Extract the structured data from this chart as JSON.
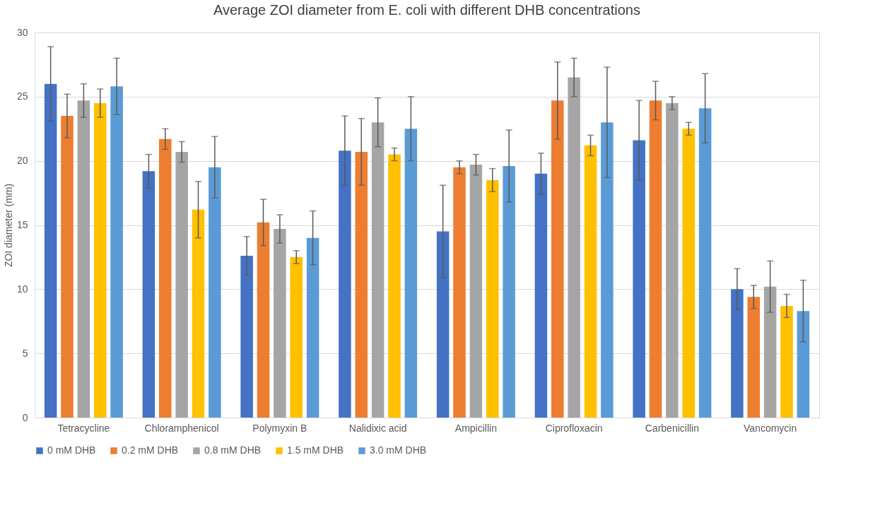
{
  "chart_data": {
    "type": "bar",
    "title": "Average ZOI diameter from E. coli with different DHB concentrations",
    "ylabel": "ZOI diameter (mm)",
    "categories": [
      "Tetracycline",
      "Chloramphenicol",
      "Polymyxin B",
      "Nalidixic acid",
      "Ampicillin",
      "Ciprofloxacin",
      "Carbenicillin",
      "Vancomycin"
    ],
    "series": [
      {
        "name": "0 mM DHB",
        "color": "#4472c4",
        "values": [
          26.0,
          19.2,
          12.6,
          20.8,
          14.5,
          19.0,
          21.6,
          10.0
        ],
        "errors": [
          2.9,
          1.3,
          1.5,
          2.7,
          3.6,
          1.6,
          3.1,
          1.6
        ]
      },
      {
        "name": "0.2 mM DHB",
        "color": "#ed7d31",
        "values": [
          23.5,
          21.7,
          15.2,
          20.7,
          19.5,
          24.7,
          24.7,
          9.4
        ],
        "errors": [
          1.7,
          0.8,
          1.8,
          2.6,
          0.5,
          3.0,
          1.5,
          0.9
        ]
      },
      {
        "name": "0.8 mM DHB",
        "color": "#a5a5a5",
        "values": [
          24.7,
          20.7,
          14.7,
          23.0,
          19.7,
          26.5,
          24.5,
          10.2
        ],
        "errors": [
          1.3,
          0.8,
          1.1,
          1.9,
          0.8,
          1.5,
          0.5,
          2.0
        ]
      },
      {
        "name": "1.5 mM DHB",
        "color": "#ffc000",
        "values": [
          24.5,
          16.2,
          12.5,
          20.5,
          18.5,
          21.2,
          22.5,
          8.7
        ],
        "errors": [
          1.1,
          2.2,
          0.5,
          0.5,
          0.9,
          0.8,
          0.5,
          0.9
        ]
      },
      {
        "name": "3.0 mM DHB",
        "color": "#5b9bd5",
        "values": [
          25.8,
          19.5,
          14.0,
          22.5,
          19.6,
          23.0,
          24.1,
          8.3
        ],
        "errors": [
          2.2,
          2.4,
          2.1,
          2.5,
          2.8,
          4.3,
          2.7,
          2.4
        ]
      }
    ],
    "ylim": [
      0,
      30
    ],
    "yticks": [
      0,
      5,
      10,
      15,
      20,
      25,
      30
    ],
    "grid": "y",
    "legend": "bottom"
  }
}
